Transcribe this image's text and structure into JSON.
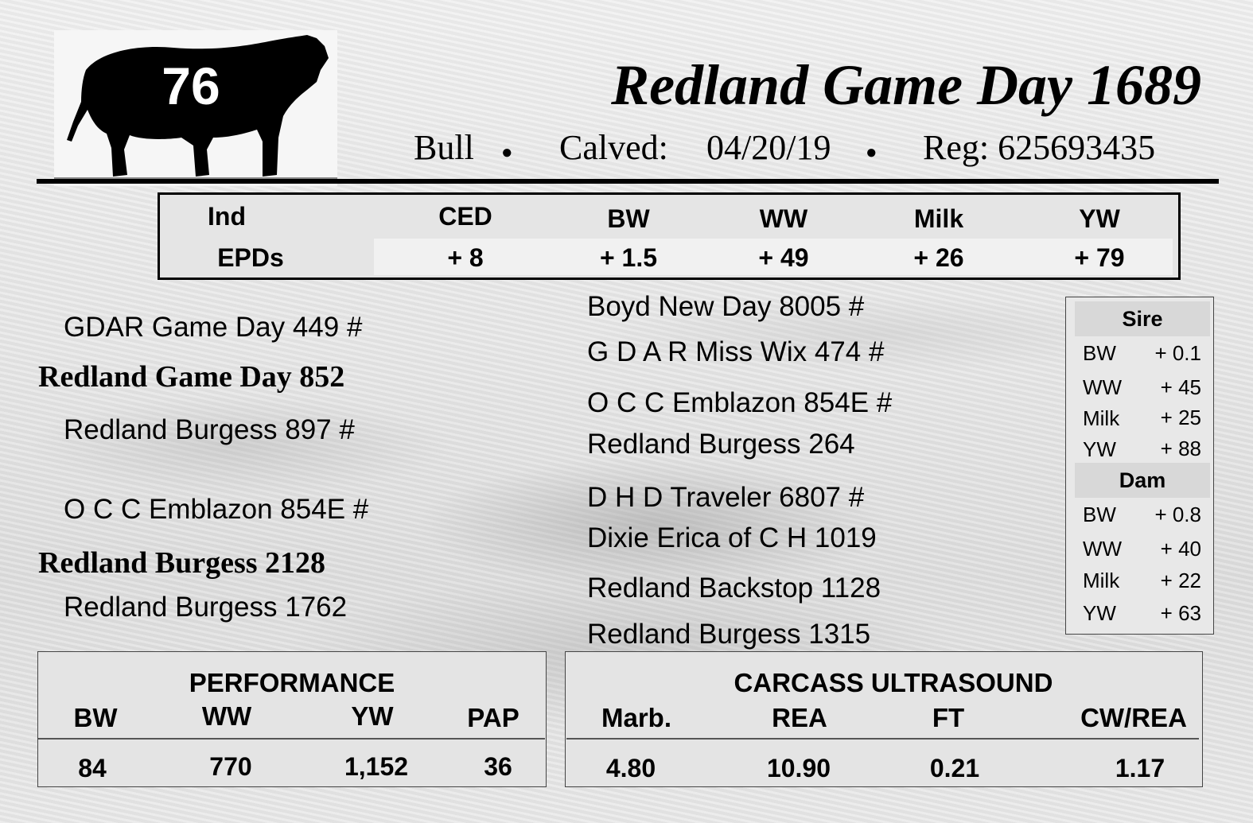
{
  "lot_number": "76",
  "animal": {
    "name": "Redland Game Day 1689",
    "sex": "Bull",
    "calved_label": "Calved:",
    "calved_date": "04/20/19",
    "reg": "Reg: 625693435",
    "separator": "●"
  },
  "epds": {
    "ind_label": "Ind",
    "epds_label": "EPDs",
    "columns": [
      {
        "label": "CED",
        "value": "+ 8"
      },
      {
        "label": "BW",
        "value": "+ 1.5"
      },
      {
        "label": "WW",
        "value": "+ 49"
      },
      {
        "label": "Milk",
        "value": "+ 26"
      },
      {
        "label": "YW",
        "value": "+ 79"
      }
    ]
  },
  "pedigree": {
    "sire_sire": "GDAR Game Day 449 #",
    "sire": "Redland Game Day 852",
    "sire_dam": "Redland Burgess 897 #",
    "dam_sire": "O C C Emblazon 854E #",
    "dam": "Redland Burgess 2128",
    "dam_dam": "Redland Burgess 1762",
    "right": [
      "Boyd New Day 8005 #",
      "G D A R Miss Wix 474 #",
      "O C C Emblazon 854E #",
      "Redland Burgess 264",
      "D H D Traveler 6807 #",
      "Dixie Erica of C H 1019",
      "Redland Backstop 1128",
      "Redland Burgess 1315"
    ]
  },
  "parent_epds": {
    "sire_label": "Sire",
    "sire": [
      {
        "label": "BW",
        "value": "+ 0.1"
      },
      {
        "label": "WW",
        "value": "+ 45"
      },
      {
        "label": "Milk",
        "value": "+ 25"
      },
      {
        "label": "YW",
        "value": "+ 88"
      }
    ],
    "dam_label": "Dam",
    "dam": [
      {
        "label": "BW",
        "value": "+ 0.8"
      },
      {
        "label": "WW",
        "value": "+ 40"
      },
      {
        "label": "Milk",
        "value": "+ 22"
      },
      {
        "label": "YW",
        "value": "+ 63"
      }
    ]
  },
  "performance": {
    "title": "PERFORMANCE",
    "columns": [
      {
        "label": "BW",
        "value": "84"
      },
      {
        "label": "WW",
        "value": "770"
      },
      {
        "label": "YW",
        "value": "1,152"
      },
      {
        "label": "PAP",
        "value": "36"
      }
    ]
  },
  "carcass": {
    "title": "CARCASS ULTRASOUND",
    "columns": [
      {
        "label": "Marb.",
        "value": "4.80"
      },
      {
        "label": "REA",
        "value": "10.90"
      },
      {
        "label": "FT",
        "value": "0.21"
      },
      {
        "label": "CW/REA",
        "value": "1.17"
      }
    ]
  }
}
